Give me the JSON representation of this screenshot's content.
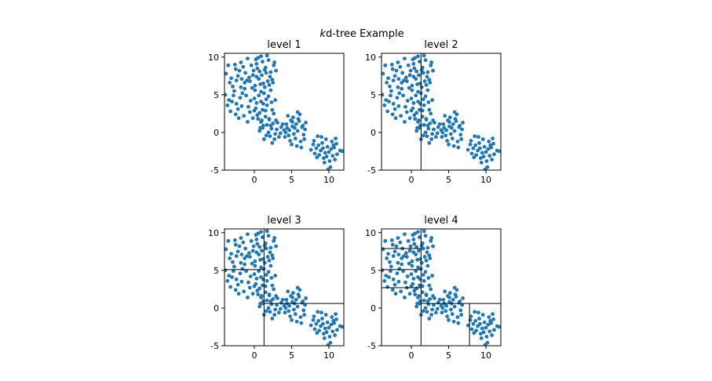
{
  "suptitle": {
    "italic": "k",
    "rest": "d-tree Example"
  },
  "colors": {
    "points": "#1f77b4",
    "lines": "#000000"
  },
  "chart_data": [
    {
      "type": "scatter",
      "title": "level 1",
      "xlim": [
        -4,
        12
      ],
      "ylim": [
        -5,
        10.5
      ],
      "xticks": [
        0,
        5,
        10
      ],
      "yticks": [
        -5,
        0,
        5,
        10
      ],
      "grid": false,
      "partition_lines": []
    },
    {
      "type": "scatter",
      "title": "level 2",
      "xlim": [
        -4,
        12
      ],
      "ylim": [
        -5,
        10.5
      ],
      "xticks": [
        0,
        5,
        10
      ],
      "yticks": [
        -5,
        0,
        5,
        10
      ],
      "grid": false,
      "partition_lines": [
        {
          "orientation": "vertical",
          "at": 1.3,
          "from": -5,
          "to": 10.5
        }
      ]
    },
    {
      "type": "scatter",
      "title": "level 3",
      "xlim": [
        -4,
        12
      ],
      "ylim": [
        -5,
        10.5
      ],
      "xticks": [
        0,
        5,
        10
      ],
      "yticks": [
        -5,
        0,
        5,
        10
      ],
      "grid": false,
      "partition_lines": [
        {
          "orientation": "vertical",
          "at": 1.3,
          "from": -5,
          "to": 10.5
        },
        {
          "orientation": "horizontal",
          "at": 5.1,
          "from": -4,
          "to": 1.3
        },
        {
          "orientation": "horizontal",
          "at": 0.6,
          "from": 1.3,
          "to": 12
        }
      ]
    },
    {
      "type": "scatter",
      "title": "level 4",
      "xlim": [
        -4,
        12
      ],
      "ylim": [
        -5,
        10.5
      ],
      "xticks": [
        0,
        5,
        10
      ],
      "yticks": [
        -5,
        0,
        5,
        10
      ],
      "grid": false,
      "partition_lines": [
        {
          "orientation": "vertical",
          "at": 1.3,
          "from": -5,
          "to": 10.5
        },
        {
          "orientation": "horizontal",
          "at": 5.1,
          "from": -4,
          "to": 1.3
        },
        {
          "orientation": "horizontal",
          "at": 0.6,
          "from": 1.3,
          "to": 12
        },
        {
          "orientation": "horizontal",
          "at": 7.9,
          "from": -4,
          "to": 1.3
        },
        {
          "orientation": "horizontal",
          "at": 2.7,
          "from": -4,
          "to": 1.3
        },
        {
          "orientation": "vertical",
          "at": 7.8,
          "from": -5,
          "to": 0.6
        }
      ]
    }
  ],
  "points": [
    [
      -2.5,
      8.4
    ],
    [
      -1.2,
      7.9
    ],
    [
      0.3,
      9.1
    ],
    [
      1.5,
      8.6
    ],
    [
      -0.6,
      6.8
    ],
    [
      2.1,
      7.4
    ],
    [
      -3.1,
      7.2
    ],
    [
      0.9,
      10.1
    ],
    [
      -1.8,
      9.3
    ],
    [
      1.2,
      6.5
    ],
    [
      2.6,
      8.9
    ],
    [
      -0.2,
      7.6
    ],
    [
      0.7,
      8.1
    ],
    [
      -2.9,
      6.1
    ],
    [
      1.9,
      9.6
    ],
    [
      -1.5,
      8.7
    ],
    [
      0.1,
      6.2
    ],
    [
      2.4,
      7.0
    ],
    [
      -0.9,
      9.8
    ],
    [
      1.6,
      7.9
    ],
    [
      -2.2,
      7.5
    ],
    [
      0.4,
      8.5
    ],
    [
      -3.5,
      8.9
    ],
    [
      1.1,
      9.4
    ],
    [
      2.9,
      8.2
    ],
    [
      -1.0,
      6.9
    ],
    [
      0.6,
      7.1
    ],
    [
      -2.6,
      9.0
    ],
    [
      1.8,
      6.8
    ],
    [
      -0.4,
      8.9
    ],
    [
      0.2,
      9.7
    ],
    [
      2.2,
      8.0
    ],
    [
      -1.7,
      7.1
    ],
    [
      0.8,
      6.4
    ],
    [
      -3.3,
      6.6
    ],
    [
      1.4,
      8.3
    ],
    [
      -0.7,
      7.3
    ],
    [
      2.7,
      9.3
    ],
    [
      -2.0,
      8.2
    ],
    [
      0.5,
      9.9
    ],
    [
      -1.3,
      6.6
    ],
    [
      1.0,
      7.6
    ],
    [
      -3.8,
      7.8
    ],
    [
      2.0,
      6.3
    ],
    [
      -0.1,
      8.2
    ],
    [
      0.9,
      5.4
    ],
    [
      1.7,
      10.2
    ],
    [
      -2.4,
      6.9
    ],
    [
      0.3,
      7.4
    ],
    [
      2.5,
      6.6
    ],
    [
      -1.6,
      5.2
    ],
    [
      0.0,
      4.5
    ],
    [
      1.2,
      3.8
    ],
    [
      -2.2,
      3.1
    ],
    [
      0.7,
      2.6
    ],
    [
      -0.8,
      3.4
    ],
    [
      1.9,
      4.8
    ],
    [
      -3.0,
      4.1
    ],
    [
      0.5,
      1.8
    ],
    [
      -1.4,
      2.2
    ],
    [
      2.2,
      5.6
    ],
    [
      -2.7,
      5.5
    ],
    [
      1.5,
      2.9
    ],
    [
      -0.3,
      5.9
    ],
    [
      0.9,
      4.1
    ],
    [
      -1.9,
      4.6
    ],
    [
      2.8,
      4.3
    ],
    [
      -3.6,
      3.6
    ],
    [
      0.2,
      3.2
    ],
    [
      1.3,
      5.2
    ],
    [
      -0.6,
      2.7
    ],
    [
      -2.5,
      2.4
    ],
    [
      1.0,
      1.6
    ],
    [
      -1.1,
      4.9
    ],
    [
      2.4,
      3.0
    ],
    [
      -0.2,
      1.9
    ],
    [
      -3.2,
      2.8
    ],
    [
      0.6,
      4.9
    ],
    [
      1.7,
      3.6
    ],
    [
      -1.7,
      3.5
    ],
    [
      0.1,
      5.6
    ],
    [
      -2.8,
      4.9
    ],
    [
      2.0,
      1.7
    ],
    [
      -0.9,
      1.4
    ],
    [
      1.1,
      3.0
    ],
    [
      -2.1,
      1.9
    ],
    [
      0.4,
      2.3
    ],
    [
      -3.9,
      5.0
    ],
    [
      1.6,
      4.4
    ],
    [
      -1.3,
      5.8
    ],
    [
      2.6,
      2.5
    ],
    [
      -0.5,
      4.2
    ],
    [
      0.8,
      0.6
    ],
    [
      -2.4,
      3.8
    ],
    [
      1.4,
      6.0
    ],
    [
      0.0,
      2.9
    ],
    [
      -1.8,
      6.0
    ],
    [
      2.3,
      4.0
    ],
    [
      -3.4,
      4.3
    ],
    [
      0.3,
      3.9
    ],
    [
      1.2,
      0.9
    ],
    [
      2.3,
      0.5
    ],
    [
      3.1,
      1.3
    ],
    [
      1.6,
      -0.4
    ],
    [
      2.8,
      -0.2
    ],
    [
      0.9,
      1.4
    ],
    [
      3.6,
      0.7
    ],
    [
      2.0,
      1.8
    ],
    [
      1.3,
      -0.9
    ],
    [
      3.3,
      -0.6
    ],
    [
      2.5,
      1.2
    ],
    [
      1.9,
      0.0
    ],
    [
      4.0,
      0.3
    ],
    [
      2.7,
      -0.9
    ],
    [
      1.5,
      2.1
    ],
    [
      3.8,
      1.1
    ],
    [
      2.1,
      -0.5
    ],
    [
      0.7,
      0.2
    ],
    [
      3.0,
      0.4
    ],
    [
      2.4,
      -1.4
    ],
    [
      1.1,
      0.6
    ],
    [
      3.5,
      -0.1
    ],
    [
      2.9,
      1.6
    ],
    [
      1.7,
      1.0
    ],
    [
      4.4,
      0.6
    ],
    [
      2.2,
      0.9
    ],
    [
      5.1,
      0.8
    ],
    [
      6.0,
      1.5
    ],
    [
      4.6,
      -0.4
    ],
    [
      5.8,
      0.2
    ],
    [
      6.5,
      0.9
    ],
    [
      4.9,
      1.6
    ],
    [
      5.5,
      -0.8
    ],
    [
      6.8,
      0.4
    ],
    [
      4.3,
      1.1
    ],
    [
      5.2,
      2.0
    ],
    [
      6.2,
      -1.2
    ],
    [
      4.7,
      0.3
    ],
    [
      5.9,
      1.8
    ],
    [
      5.0,
      -1.6
    ],
    [
      6.6,
      -0.3
    ],
    [
      4.1,
      -0.6
    ],
    [
      5.6,
      1.1
    ],
    [
      6.1,
      2.4
    ],
    [
      4.5,
      2.2
    ],
    [
      5.3,
      -0.2
    ],
    [
      6.9,
      1.3
    ],
    [
      5.7,
      -1.8
    ],
    [
      4.8,
      -1.1
    ],
    [
      6.4,
      0.7
    ],
    [
      5.4,
      0.6
    ],
    [
      6.3,
      -2.0
    ],
    [
      5.1,
      1.4
    ],
    [
      4.2,
      0.0
    ],
    [
      6.7,
      -0.9
    ],
    [
      5.8,
      2.7
    ],
    [
      8.3,
      -2.1
    ],
    [
      9.1,
      -1.4
    ],
    [
      10.0,
      -2.6
    ],
    [
      8.7,
      -3.0
    ],
    [
      9.6,
      -0.9
    ],
    [
      10.6,
      -1.7
    ],
    [
      8.0,
      -1.1
    ],
    [
      9.3,
      -3.4
    ],
    [
      10.3,
      -2.2
    ],
    [
      11.1,
      -2.9
    ],
    [
      8.9,
      -2.4
    ],
    [
      9.8,
      -1.9
    ],
    [
      10.9,
      -0.8
    ],
    [
      8.4,
      -3.3
    ],
    [
      9.5,
      -2.7
    ],
    [
      11.5,
      -2.4
    ],
    [
      10.1,
      -3.8
    ],
    [
      8.1,
      -2.8
    ],
    [
      9.0,
      -0.6
    ],
    [
      10.5,
      -3.1
    ],
    [
      9.4,
      -4.0
    ],
    [
      11.0,
      -1.5
    ],
    [
      8.6,
      -1.7
    ],
    [
      10.2,
      -4.6
    ],
    [
      9.2,
      -2.1
    ],
    [
      10.8,
      -3.6
    ],
    [
      7.9,
      -1.6
    ],
    [
      9.7,
      -3.2
    ],
    [
      11.8,
      -2.5
    ],
    [
      8.5,
      -0.5
    ],
    [
      10.4,
      -1.2
    ],
    [
      9.9,
      -4.9
    ],
    [
      7.6,
      -2.3
    ],
    [
      10.7,
      -2.0
    ]
  ]
}
